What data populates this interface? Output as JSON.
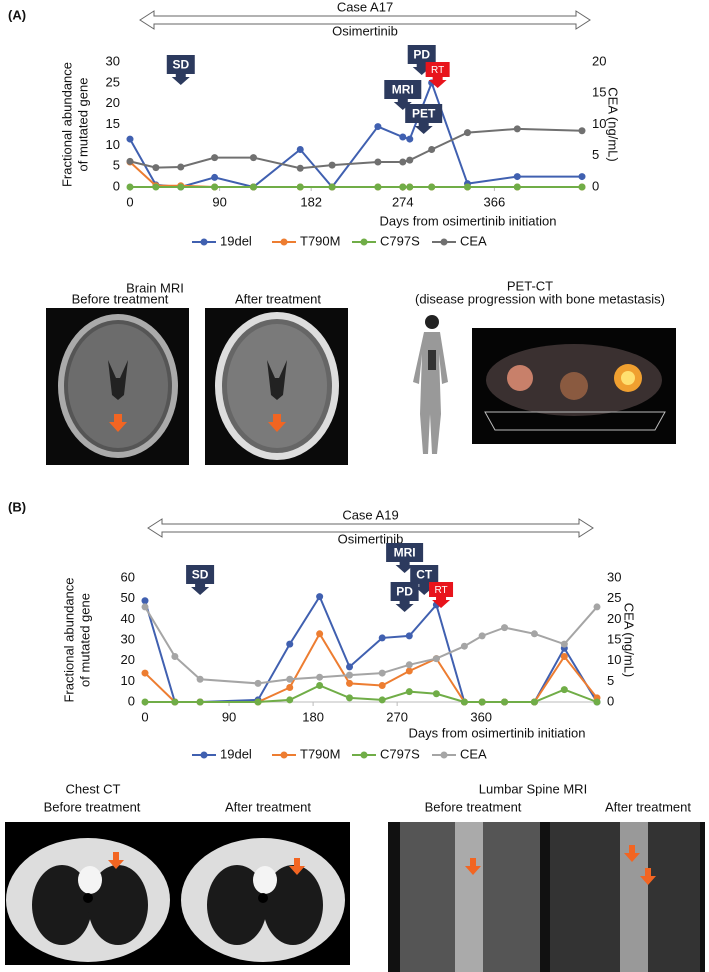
{
  "chart_data": [
    {
      "type": "line",
      "panel": "(A)",
      "title": "Case A17",
      "banner": "Osimertinib",
      "ylabel": [
        "Fractional abundance",
        "of mutated gene"
      ],
      "y2label": "CEA (ng/mL)",
      "xlabel": "Days from osimertinib initiation",
      "x": [
        0,
        26,
        51,
        85,
        124,
        171,
        203,
        249,
        274,
        281,
        303,
        339,
        389,
        454
      ],
      "xlim": [
        0,
        454
      ],
      "xticks": [
        0,
        90,
        182,
        274,
        366
      ],
      "ylim": [
        0,
        30
      ],
      "yticks": [
        0,
        5,
        10,
        15,
        20,
        25,
        30
      ],
      "y2lim": [
        0,
        20
      ],
      "y2ticks": [
        0,
        5,
        10,
        15,
        20
      ],
      "grid": false,
      "series": [
        {
          "name": "19del",
          "color": "#4060b0",
          "values": [
            11.5,
            0.5,
            0,
            2.3,
            0,
            9,
            0,
            14.5,
            12,
            11.5,
            25,
            0.8,
            2.5,
            2.5
          ]
        },
        {
          "name": "T790M",
          "color": "#ed7d31",
          "values": [
            6,
            0.3,
            0.3,
            0,
            0,
            0,
            0,
            0,
            0,
            0,
            0,
            0,
            0,
            0
          ]
        },
        {
          "name": "C797S",
          "color": "#70ad47",
          "values": [
            0,
            0,
            0,
            0,
            0,
            0,
            0,
            0,
            0,
            0,
            0,
            0,
            0,
            0
          ]
        },
        {
          "name": "CEA",
          "color": "#707070",
          "axis": "y2",
          "values": [
            4.1,
            3.1,
            3.2,
            4.7,
            4.7,
            3,
            3.5,
            4,
            4,
            4.3,
            6,
            8.7,
            9.3,
            9
          ]
        }
      ],
      "annotations": [
        {
          "label": "SD",
          "x": 51
        },
        {
          "label": "PD",
          "x": 293
        },
        {
          "label": "MRI",
          "x": 274
        },
        {
          "label": "PET",
          "x": 295
        },
        {
          "label": "RT",
          "x": 309
        }
      ],
      "images": [
        {
          "title": "Brain MRI",
          "captions": [
            "Before treatment",
            "After treatment"
          ]
        },
        {
          "title": "PET-CT",
          "captions": [
            "(disease progression with bone metastasis)"
          ]
        }
      ]
    },
    {
      "type": "line",
      "panel": "(B)",
      "title": "Case A19",
      "banner": "Osimertinib",
      "ylabel": [
        "Fractional abundance",
        "of mutated gene"
      ],
      "y2label": "CEA (ng/mL)",
      "xlabel": "Days from osimertinib initiation",
      "x": [
        0,
        32,
        59,
        121,
        155,
        187,
        219,
        254,
        283,
        312,
        342,
        361,
        385,
        417,
        449,
        484
      ],
      "xlim": [
        0,
        484
      ],
      "xticks": [
        0,
        90,
        180,
        270,
        360
      ],
      "ylim": [
        0,
        60
      ],
      "yticks": [
        0,
        10,
        20,
        30,
        40,
        50,
        60
      ],
      "y2lim": [
        0,
        30
      ],
      "y2ticks": [
        0,
        5,
        10,
        15,
        20,
        25,
        30
      ],
      "grid": false,
      "series": [
        {
          "name": "19del",
          "color": "#4060b0",
          "values": [
            49,
            0,
            0,
            1,
            28,
            51,
            17,
            31,
            32,
            47,
            0,
            0,
            0,
            0,
            26,
            0
          ]
        },
        {
          "name": "T790M",
          "color": "#ed7d31",
          "values": [
            14,
            0,
            0,
            0,
            7,
            33,
            9,
            8,
            15,
            21,
            0,
            0,
            0,
            0,
            22,
            2
          ]
        },
        {
          "name": "C797S",
          "color": "#70ad47",
          "values": [
            0,
            0,
            0,
            0,
            1,
            8,
            2,
            1,
            5,
            4,
            0,
            0,
            0,
            0,
            6,
            0
          ]
        },
        {
          "name": "CEA",
          "color": "#a5a5a5",
          "axis": "y2",
          "values": [
            23,
            11,
            5.5,
            4.5,
            5.5,
            6,
            6.5,
            7,
            9,
            10.5,
            13.5,
            16,
            18,
            16.5,
            14,
            23
          ]
        }
      ],
      "annotations": [
        {
          "label": "SD",
          "x": 59
        },
        {
          "label": "MRI",
          "x": 278
        },
        {
          "label": "PD",
          "x": 278
        },
        {
          "label": "CT",
          "x": 299
        },
        {
          "label": "RT",
          "x": 317
        }
      ],
      "images": [
        {
          "title": "Chest CT",
          "captions": [
            "Before treatment",
            "After treatment"
          ]
        },
        {
          "title": "Lumbar Spine MRI",
          "captions": [
            "Before treatment",
            "After treatment"
          ]
        }
      ]
    }
  ]
}
